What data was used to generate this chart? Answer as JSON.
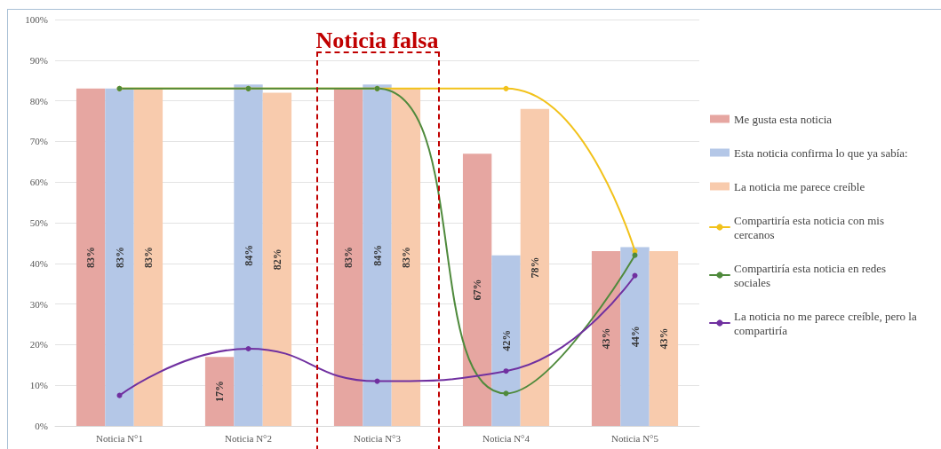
{
  "chart_data": {
    "type": "bar",
    "categories": [
      "Noticia N°1",
      "Noticia N°2",
      "Noticia N°3",
      "Noticia N°4",
      "Noticia N°5"
    ],
    "series": [
      {
        "name": "Me gusta esta noticia",
        "color": "#e6a6a1",
        "values": [
          83,
          17,
          83,
          67,
          43
        ],
        "value_labels": [
          "83%",
          "17%",
          "83%",
          "67%",
          "43%"
        ]
      },
      {
        "name": "Esta noticia confirma lo que ya sabía:",
        "color": "#b4c7e7",
        "values": [
          83,
          84,
          84,
          42,
          44
        ],
        "value_labels": [
          "83%",
          "84%",
          "84%",
          "42%",
          "44%"
        ]
      },
      {
        "name": "La noticia me parece creíble",
        "color": "#f8cbad",
        "values": [
          83,
          82,
          83,
          78,
          43
        ],
        "value_labels": [
          "83%",
          "82%",
          "83%",
          "78%",
          "43%"
        ]
      },
      {
        "name": "Compartiría esta noticia con mis cercanos",
        "type": "line",
        "color": "#f2c21b",
        "values": [
          83,
          83,
          83,
          83,
          43
        ]
      },
      {
        "name": "Compartiría esta noticia en redes sociales",
        "type": "line",
        "color": "#4f8a3c",
        "values": [
          83,
          83,
          83,
          8,
          42
        ]
      },
      {
        "name": "La noticia no me parece creíble, pero la compartiría",
        "type": "line",
        "color": "#7030a0",
        "values": [
          7.5,
          19,
          11,
          13.5,
          37
        ]
      }
    ],
    "ylim": [
      0,
      100
    ],
    "yticks": [
      {
        "value": 0,
        "label": "0%"
      },
      {
        "value": 10,
        "label": "10%"
      },
      {
        "value": 20,
        "label": "20%"
      },
      {
        "value": 30,
        "label": "30%"
      },
      {
        "value": 40,
        "label": "40%"
      },
      {
        "value": 50,
        "label": "50%"
      },
      {
        "value": 60,
        "label": "60%"
      },
      {
        "value": 70,
        "label": "70%"
      },
      {
        "value": 80,
        "label": "80%"
      },
      {
        "value": 90,
        "label": "90%"
      },
      {
        "value": 100,
        "label": "100%"
      }
    ],
    "annotations": [
      "Noticia falsa"
    ],
    "grid": "y",
    "legend": "right",
    "marker": "circle",
    "line_style": "solid"
  }
}
